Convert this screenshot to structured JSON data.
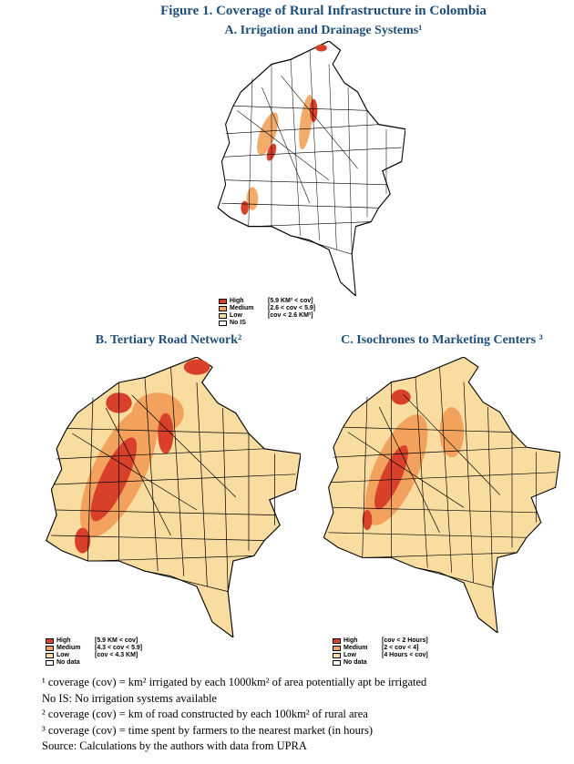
{
  "title": "Figure 1. Coverage of Rural Infrastructure in Colombia",
  "panels": [
    {
      "subtitle": "A.  Irrigation and Drainage Systems¹",
      "legend": [
        [
          "High",
          "[5.9 KM² < cov]"
        ],
        [
          "Medium",
          "[2.6 < cov < 5.9]"
        ],
        [
          "Low",
          "[cov < 2.6 KM²]"
        ],
        [
          "No IS",
          ""
        ]
      ]
    },
    {
      "subtitle": "B.  Tertiary Road Network²",
      "legend": [
        [
          "High",
          "[5.9 KM < cov]"
        ],
        [
          "Medium",
          "[4.3 < cov < 5.9]"
        ],
        [
          "Low",
          "[cov < 4.3 KM]"
        ],
        [
          "No data",
          ""
        ]
      ]
    },
    {
      "subtitle": "C. Isochrones to Marketing Centers ³",
      "legend": [
        [
          "High",
          "[cov < 2 Hours]"
        ],
        [
          "Medium",
          "[2 < cov < 4]"
        ],
        [
          "Low",
          "[4 Hours < cov]"
        ],
        [
          "No data",
          ""
        ]
      ]
    }
  ],
  "footnotes": [
    "¹ coverage (cov) = km² irrigated by each 1000km² of area potentially apt be irrigated",
    "No IS: No irrigation systems available",
    "² coverage (cov) = km of road constructed by each 100km² of rural area",
    "³ coverage (cov) = time spent by farmers to the nearest market (in hours)",
    "Source: Calculations by the authors with data from UPRA"
  ]
}
